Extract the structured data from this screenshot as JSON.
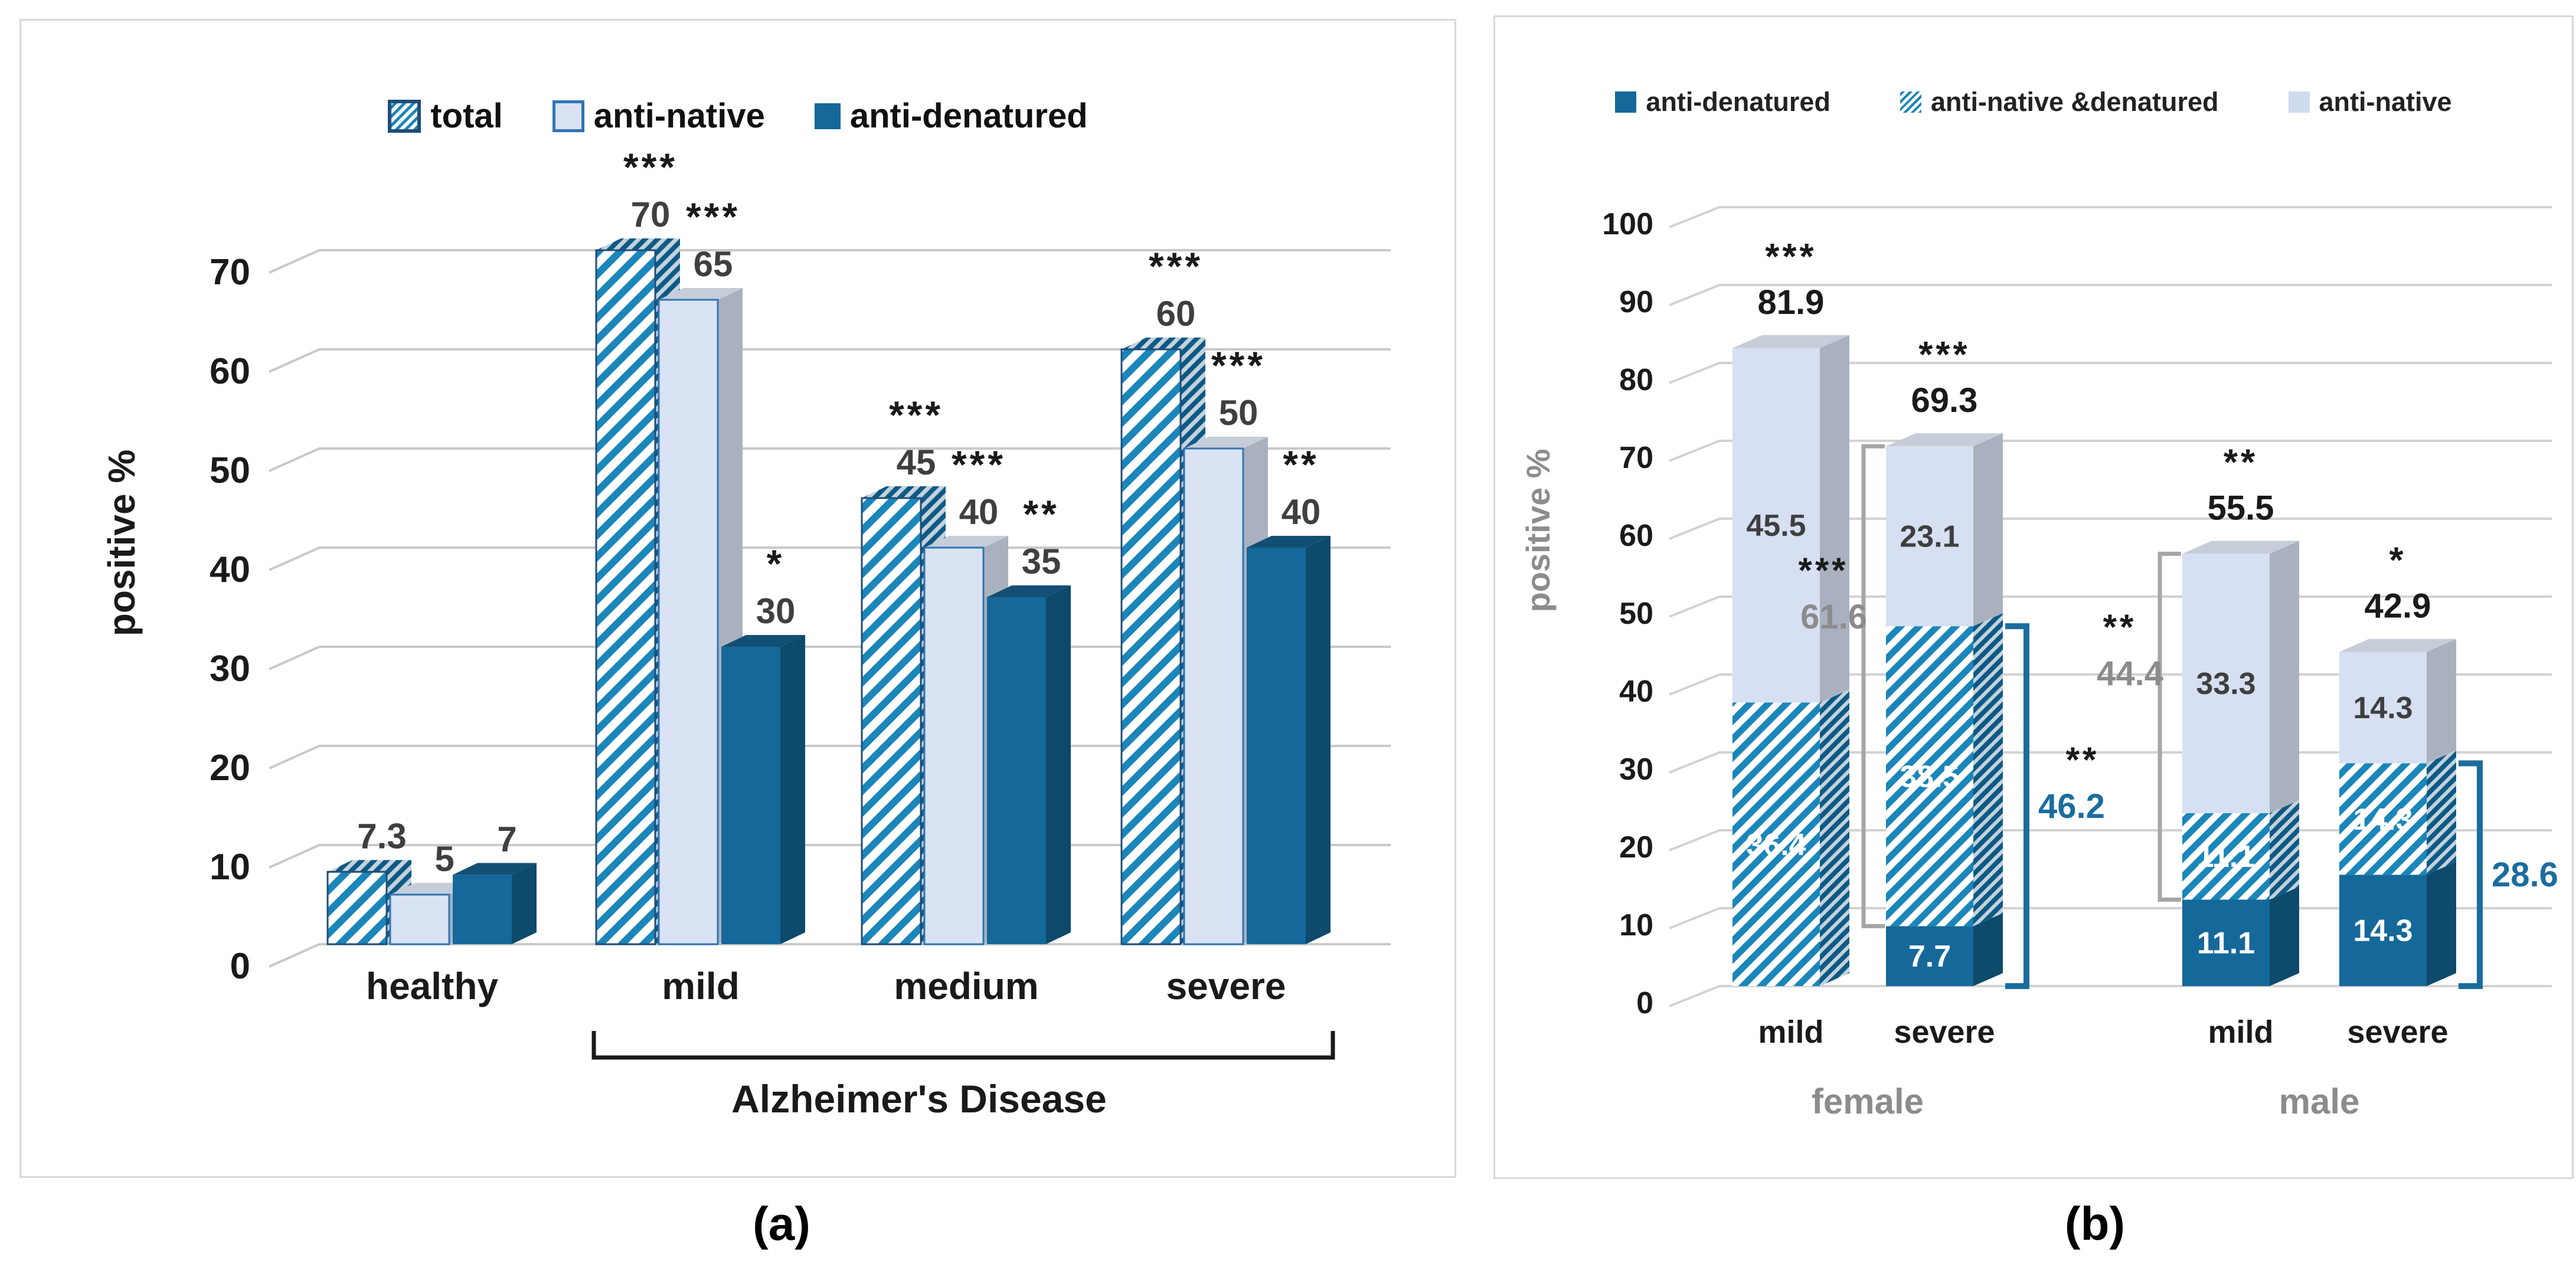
{
  "figure": {
    "caption_a": "(a)",
    "caption_b": "(b)",
    "colors": {
      "solid": "#15689a",
      "solid_side": "#0d4a6b",
      "solid_top": "#134f74",
      "hatch_stripe": "#1a86ba",
      "pale": "#dae3f3",
      "pale_b": "#d6e0f2",
      "pale_side": "#a9b1bf",
      "pale_top": "#c6cdd9",
      "navy_border": "#1f4e79",
      "native_border": "#2e75b6",
      "blue_annotation": "#1b6d9e",
      "gray_annotation": "#8c8c8c",
      "gridline": "#c9c9c9",
      "value_label": "#3f3f3f",
      "tick_label": "#1a1a1a"
    },
    "panel_a": {
      "legend": [
        "total",
        "anti-native",
        "anti-denatured"
      ],
      "y_label": "positive %",
      "y_ticks": [
        "0",
        "10",
        "20",
        "30",
        "40",
        "50",
        "60",
        "70"
      ],
      "x_labels": [
        "healthy",
        "mild",
        "medium",
        "severe"
      ],
      "bracket_label": "Alzheimer's Disease"
    },
    "panel_b": {
      "legend": [
        "anti-denatured",
        "anti-native &denatured",
        "anti-native"
      ],
      "y_label": "positive %",
      "y_ticks": [
        "0",
        "10",
        "20",
        "30",
        "40",
        "50",
        "60",
        "70",
        "80",
        "90",
        "100"
      ],
      "x_labels": [
        "mild",
        "severe",
        "mild",
        "severe"
      ],
      "group_labels": [
        "female",
        "male"
      ]
    }
  },
  "chart_data": [
    {
      "panel": "a",
      "type": "bar",
      "style": "3d-clustered",
      "title": "",
      "xlabel": "",
      "ylabel": "positive %",
      "ylim": [
        0,
        70
      ],
      "grid": true,
      "legend_position": "top",
      "categories": [
        "healthy",
        "mild",
        "medium",
        "severe"
      ],
      "series": [
        {
          "name": "total",
          "values": [
            7.3,
            70,
            45,
            60
          ],
          "significance": [
            "",
            "***",
            "***",
            "***"
          ]
        },
        {
          "name": "anti-native",
          "values": [
            5,
            65,
            40,
            50
          ],
          "significance": [
            "",
            "***",
            "***",
            "***"
          ]
        },
        {
          "name": "anti-denatured",
          "values": [
            7,
            30,
            35,
            40
          ],
          "significance": [
            "",
            "*",
            "**",
            "**"
          ]
        }
      ],
      "category_bracket": {
        "label": "Alzheimer's Disease",
        "span": [
          "mild",
          "severe"
        ]
      }
    },
    {
      "panel": "b",
      "type": "bar",
      "style": "3d-stacked",
      "stacked": true,
      "title": "",
      "xlabel": "",
      "ylabel": "positive %",
      "ylim": [
        0,
        100
      ],
      "grid": true,
      "legend_position": "top",
      "groups": [
        "female",
        "male"
      ],
      "categories": [
        "mild",
        "severe",
        "mild",
        "severe"
      ],
      "series": [
        {
          "name": "anti-denatured",
          "values": [
            0,
            7.7,
            11.1,
            14.3
          ]
        },
        {
          "name": "anti-native &denatured",
          "values": [
            36.4,
            38.5,
            11.1,
            14.3
          ]
        },
        {
          "name": "anti-native",
          "values": [
            45.5,
            23.1,
            33.3,
            14.3
          ]
        }
      ],
      "totals": [
        81.9,
        69.3,
        55.5,
        42.9
      ],
      "total_significance": [
        "***",
        "***",
        "**",
        "*"
      ],
      "bracket_annotations": [
        {
          "bar_index": 1,
          "side": "left",
          "value": 61.6,
          "significance": "***",
          "from": 7.7,
          "to": 69.3,
          "color": "gray"
        },
        {
          "bar_index": 1,
          "side": "right",
          "value": 46.2,
          "significance": "**",
          "from": 0,
          "to": 46.2,
          "color": "blue"
        },
        {
          "bar_index": 2,
          "side": "left",
          "value": 44.4,
          "significance": "**",
          "from": 11.1,
          "to": 55.5,
          "color": "gray"
        },
        {
          "bar_index": 3,
          "side": "right",
          "value": 28.6,
          "significance": "",
          "from": 0,
          "to": 28.6,
          "color": "blue"
        }
      ]
    }
  ]
}
